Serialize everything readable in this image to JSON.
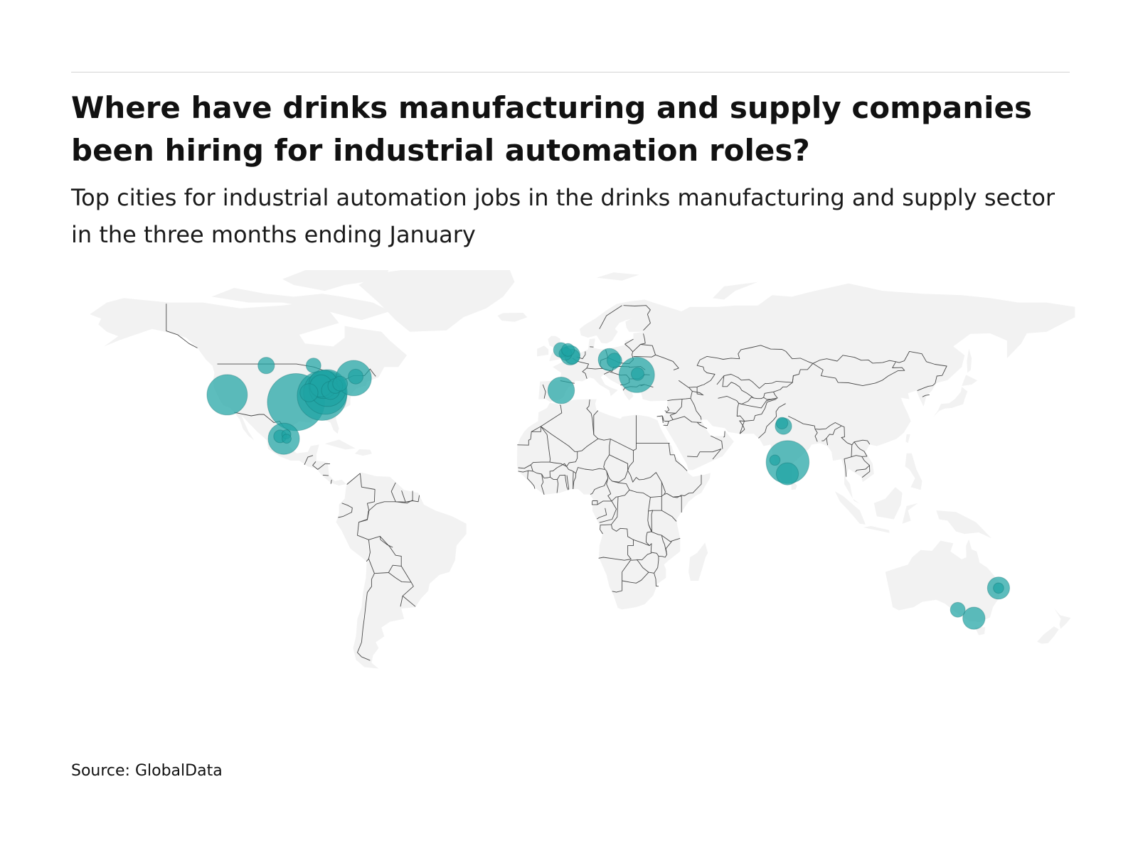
{
  "title": "Where have drinks manufacturing and supply companies been hiring for industrial automation roles?",
  "subtitle": "Top cities for industrial automation jobs in the drinks manufacturing and supply sector in the three months ending January",
  "source": "Source: GlobalData",
  "colors": {
    "bubble": "#1fa3a3",
    "land": "#f2f2f2",
    "border": "#4a4a4a"
  },
  "map": {
    "projection": "equirectangular",
    "bubbles": [
      {
        "lon": -119.5,
        "lat": 38.5,
        "size": 3
      },
      {
        "lon": -95.2,
        "lat": 36.0,
        "size": 6
      },
      {
        "lon": -86.0,
        "lat": 38.2,
        "size": 4.5
      },
      {
        "lon": -84.8,
        "lat": 39.3,
        "size": 3.5
      },
      {
        "lon": -84.0,
        "lat": 40.8,
        "size": 2.5
      },
      {
        "lon": -85.6,
        "lat": 42.1,
        "size": 1.5
      },
      {
        "lon": -90.6,
        "lat": 39.2,
        "size": 0.6
      },
      {
        "lon": -86.3,
        "lat": 41.5,
        "size": 0.9
      },
      {
        "lon": -83.0,
        "lat": 40.0,
        "size": 0.6
      },
      {
        "lon": -81.3,
        "lat": 41.5,
        "size": 0.4
      },
      {
        "lon": -79.6,
        "lat": 42.3,
        "size": 0.4
      },
      {
        "lon": -74.8,
        "lat": 44.2,
        "size": 2.3
      },
      {
        "lon": -74.1,
        "lat": 44.7,
        "size": 0.4
      },
      {
        "lon": -105.7,
        "lat": 48.5,
        "size": 0.5
      },
      {
        "lon": -89.0,
        "lat": 48.5,
        "size": 0.4
      },
      {
        "lon": -99.5,
        "lat": 23.5,
        "size": 1.8
      },
      {
        "lon": -100.8,
        "lat": 24.3,
        "size": 0.3
      },
      {
        "lon": -98.6,
        "lat": 25.0,
        "size": 0.15
      },
      {
        "lon": -98.5,
        "lat": 23.5,
        "size": 0.15
      },
      {
        "lon": -1.6,
        "lat": 53.8,
        "size": 0.4
      },
      {
        "lon": 0.0,
        "lat": 52.5,
        "size": 0.3
      },
      {
        "lon": 0.9,
        "lat": 53.8,
        "size": 0.3
      },
      {
        "lon": 1.7,
        "lat": 52.0,
        "size": 0.7
      },
      {
        "lon": 2.4,
        "lat": 51.5,
        "size": 0.4
      },
      {
        "lon": -1.5,
        "lat": 40.0,
        "size": 1.3
      },
      {
        "lon": 15.5,
        "lat": 50.5,
        "size": 0.9
      },
      {
        "lon": 17.3,
        "lat": 50.2,
        "size": 0.4
      },
      {
        "lon": 25.2,
        "lat": 45.3,
        "size": 2.3
      },
      {
        "lon": 25.5,
        "lat": 45.6,
        "size": 0.3
      },
      {
        "lon": 76.5,
        "lat": 28.8,
        "size": 0.25
      },
      {
        "lon": 77.0,
        "lat": 27.8,
        "size": 0.5
      },
      {
        "lon": 78.5,
        "lat": 15.5,
        "size": 3.4
      },
      {
        "lon": 74.0,
        "lat": 16.2,
        "size": 0.2
      },
      {
        "lon": 78.4,
        "lat": 11.5,
        "size": 0.9
      },
      {
        "lon": 144.3,
        "lat": -37.8,
        "size": 0.9
      },
      {
        "lon": 153.0,
        "lat": -27.5,
        "size": 0.9
      },
      {
        "lon": 153.0,
        "lat": -27.5,
        "size": 0.2
      },
      {
        "lon": 138.6,
        "lat": -34.9,
        "size": 0.4
      }
    ]
  }
}
